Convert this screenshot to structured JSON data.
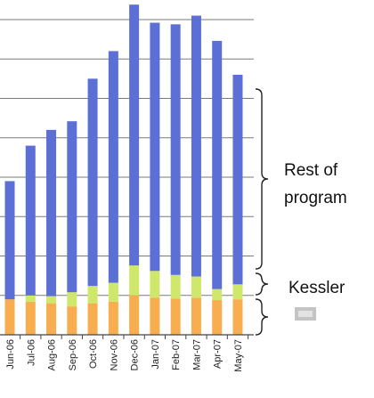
{
  "chart_data": {
    "type": "bar",
    "stacked": true,
    "categories": [
      "Jun-06",
      "Jul-06",
      "Aug-06",
      "Sep-06",
      "Oct-06",
      "Nov-06",
      "Dec-06",
      "Jan-07",
      "Feb-07",
      "Mar-07",
      "Apr-07",
      "May-07"
    ],
    "series": [
      {
        "name": "",
        "color": "#f8ad4f",
        "values": [
          45,
          42,
          40,
          36,
          40,
          42,
          50,
          47,
          46,
          47,
          44,
          45
        ]
      },
      {
        "name": "",
        "color": "#cfe76a",
        "values": [
          0,
          8,
          9,
          18,
          22,
          24,
          38,
          34,
          30,
          27,
          14,
          19
        ]
      },
      {
        "name": "",
        "color": "#5b6fd6",
        "values": [
          150,
          190,
          211,
          217,
          263,
          294,
          331,
          315,
          318,
          331,
          315,
          266
        ]
      }
    ],
    "ylim": [
      0,
      400
    ],
    "grid": true,
    "annotations": [
      {
        "label": "Rest of program",
        "lines": [
          "Rest of",
          "program"
        ],
        "series_index": 2
      },
      {
        "label": "Kessler",
        "series_index": 1
      }
    ]
  }
}
